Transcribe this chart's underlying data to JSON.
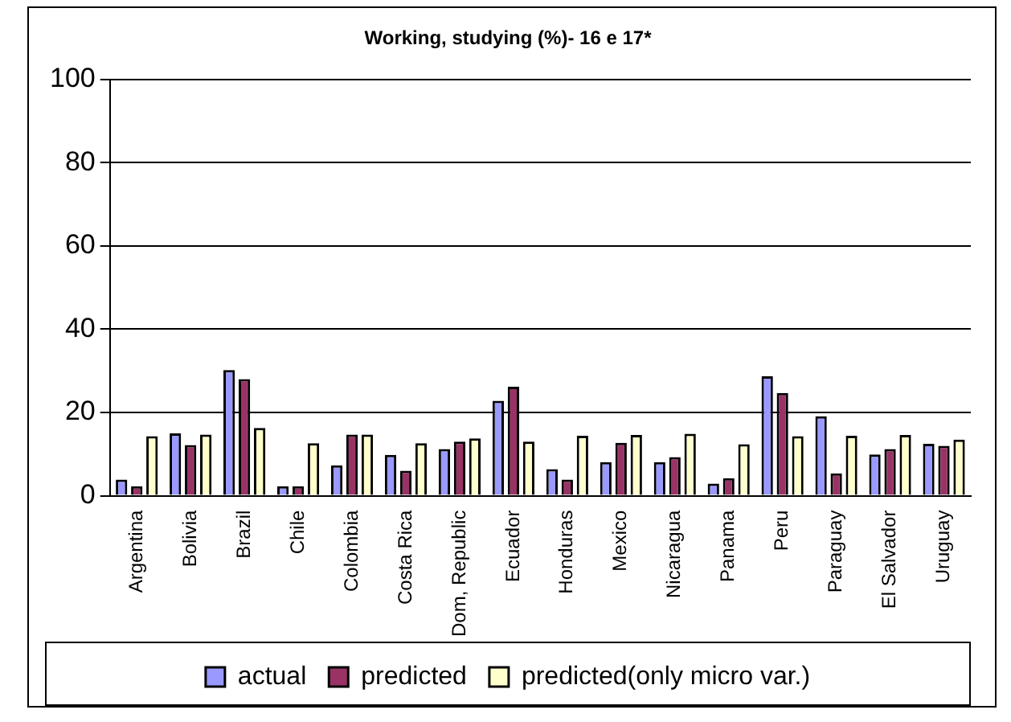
{
  "chart_data": {
    "type": "bar",
    "title": "Working, studying (%)- 16 e 17*",
    "categories": [
      "Argentina",
      "Bolivia",
      "Brazil",
      "Chile",
      "Colombia",
      "Costa Rica",
      "Dom, Republic",
      "Ecuador",
      "Honduras",
      "Mexico",
      "Nicaragua",
      "Panama",
      "Peru",
      "Paraguay",
      "El Salvador",
      "Uruguay"
    ],
    "series": [
      {
        "name": "actual",
        "color": "#9999ff",
        "values": [
          3.9,
          15,
          30.2,
          2.3,
          7.3,
          9.8,
          11.2,
          22.8,
          6.4,
          8.1,
          8.1,
          2.9,
          28.7,
          19.1,
          9.9,
          12.5
        ]
      },
      {
        "name": "predicted",
        "color": "#993366",
        "values": [
          2.3,
          12.2,
          28,
          2.3,
          14.7,
          6,
          13,
          26.2,
          3.9,
          12.7,
          9.3,
          4.2,
          24.7,
          5.4,
          11.2,
          12
        ]
      },
      {
        "name": "predicted(only micro var.)",
        "color": "#ffffcc",
        "values": [
          14.3,
          14.7,
          16.3,
          12.6,
          14.7,
          12.6,
          13.8,
          13,
          14.4,
          14.6,
          14.9,
          12.4,
          14.3,
          14.4,
          14.6,
          13.5
        ]
      }
    ],
    "ylim": [
      0,
      100
    ],
    "yticks": [
      0,
      20,
      40,
      60,
      80,
      100
    ],
    "grid": "y",
    "legend": "bottom"
  }
}
